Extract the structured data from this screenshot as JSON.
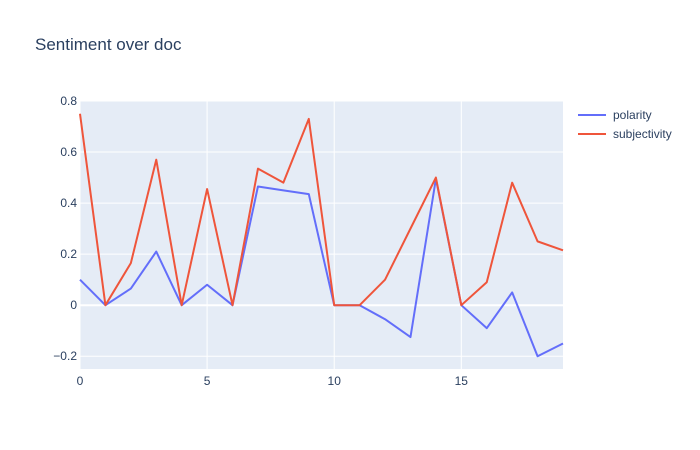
{
  "chart_data": {
    "type": "line",
    "title": "Sentiment over doc",
    "xlabel": "",
    "ylabel": "",
    "x": [
      0,
      1,
      2,
      3,
      4,
      5,
      6,
      7,
      8,
      9,
      10,
      11,
      12,
      13,
      14,
      15,
      16,
      17,
      18,
      19
    ],
    "xlim": [
      0,
      19
    ],
    "ylim": [
      -0.25,
      0.8
    ],
    "xticks": [
      0,
      5,
      10,
      15
    ],
    "xtick_labels": [
      "0",
      "5",
      "10",
      "15"
    ],
    "yticks": [
      -0.2,
      0,
      0.2,
      0.4,
      0.6,
      0.8
    ],
    "ytick_labels": [
      "−0.2",
      "0",
      "0.2",
      "0.4",
      "0.6",
      "0.8"
    ],
    "grid": true,
    "legend_position": "top-right",
    "plot_background": "#e5ecf6",
    "series": [
      {
        "name": "polarity",
        "color": "#636efa",
        "values": [
          0.1,
          0.0,
          0.065,
          0.21,
          0.0,
          0.08,
          0.0,
          0.465,
          0.45,
          0.435,
          0.0,
          0.0,
          -0.055,
          -0.125,
          0.495,
          0.0,
          -0.09,
          0.05,
          -0.2,
          -0.15
        ]
      },
      {
        "name": "subjectivity",
        "color": "#ef553b",
        "values": [
          0.75,
          0.0,
          0.165,
          0.57,
          0.0,
          0.455,
          0.0,
          0.535,
          0.48,
          0.73,
          0.0,
          0.0,
          0.1,
          0.3,
          0.5,
          0.0,
          0.09,
          0.48,
          0.25,
          0.215
        ]
      }
    ]
  }
}
